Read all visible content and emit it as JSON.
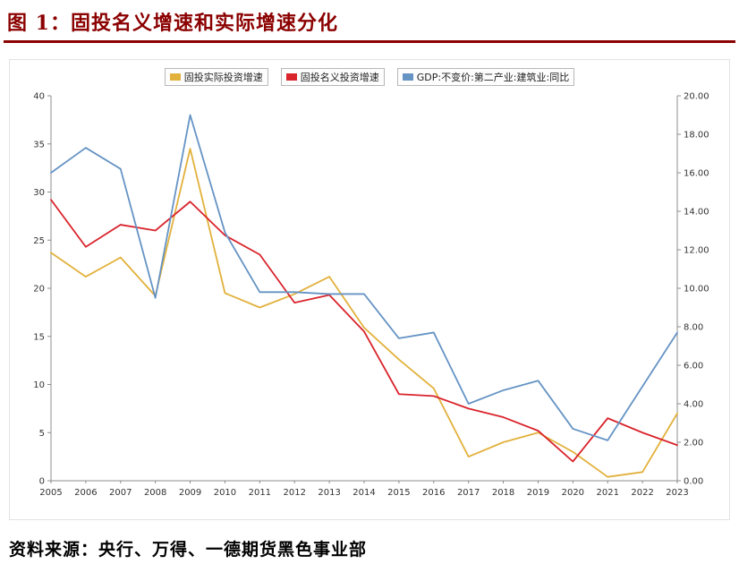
{
  "header": {
    "title": "图 1：固投名义增速和实际增速分化"
  },
  "footer": {
    "source": "资料来源：央行、万得、一德期货黑色事业部"
  },
  "colors": {
    "title": "#8B0000",
    "axis": "#8c8c8c",
    "tick_text": "#333333"
  },
  "chart_data": {
    "type": "line",
    "title": "",
    "grid": false,
    "legend_position": "top",
    "categories": [
      "2005",
      "2006",
      "2007",
      "2008",
      "2009",
      "2010",
      "2011",
      "2012",
      "2013",
      "2014",
      "2015",
      "2016",
      "2017",
      "2018",
      "2019",
      "2020",
      "2021",
      "2022",
      "2023"
    ],
    "left_axis": {
      "min": 0,
      "max": 40,
      "step": 5,
      "ticks": [
        "0",
        "5",
        "10",
        "15",
        "20",
        "25",
        "30",
        "35",
        "40"
      ]
    },
    "right_axis": {
      "min": 0,
      "max": 20,
      "step": 2,
      "ticks": [
        "0.00",
        "2.00",
        "4.00",
        "6.00",
        "8.00",
        "10.00",
        "12.00",
        "14.00",
        "16.00",
        "18.00",
        "20.00"
      ]
    },
    "series": [
      {
        "name": "固投实际投资增速",
        "axis": "left",
        "color": "#E2B13C",
        "values": [
          23.7,
          21.2,
          23.2,
          19.2,
          34.5,
          19.5,
          18.0,
          19.4,
          21.2,
          15.9,
          12.6,
          9.6,
          2.5,
          4.0,
          5.0,
          3.0,
          0.4,
          0.9,
          7.0
        ]
      },
      {
        "name": "固投名义投资增速",
        "axis": "left",
        "color": "#D9242C",
        "values": [
          29.2,
          24.3,
          26.6,
          26.0,
          29.0,
          25.5,
          23.5,
          18.5,
          19.3,
          15.5,
          9.0,
          8.8,
          7.5,
          6.6,
          5.2,
          2.0,
          6.5,
          5.0,
          3.7
        ]
      },
      {
        "name": "GDP:不变价:第二产业:建筑业:同比",
        "axis": "right",
        "color": "#6593C4",
        "values": [
          16.0,
          17.3,
          16.2,
          9.5,
          19.0,
          12.9,
          9.8,
          9.8,
          9.7,
          9.7,
          7.4,
          7.7,
          4.0,
          4.7,
          5.2,
          2.7,
          2.1,
          4.9,
          7.7
        ]
      }
    ]
  }
}
